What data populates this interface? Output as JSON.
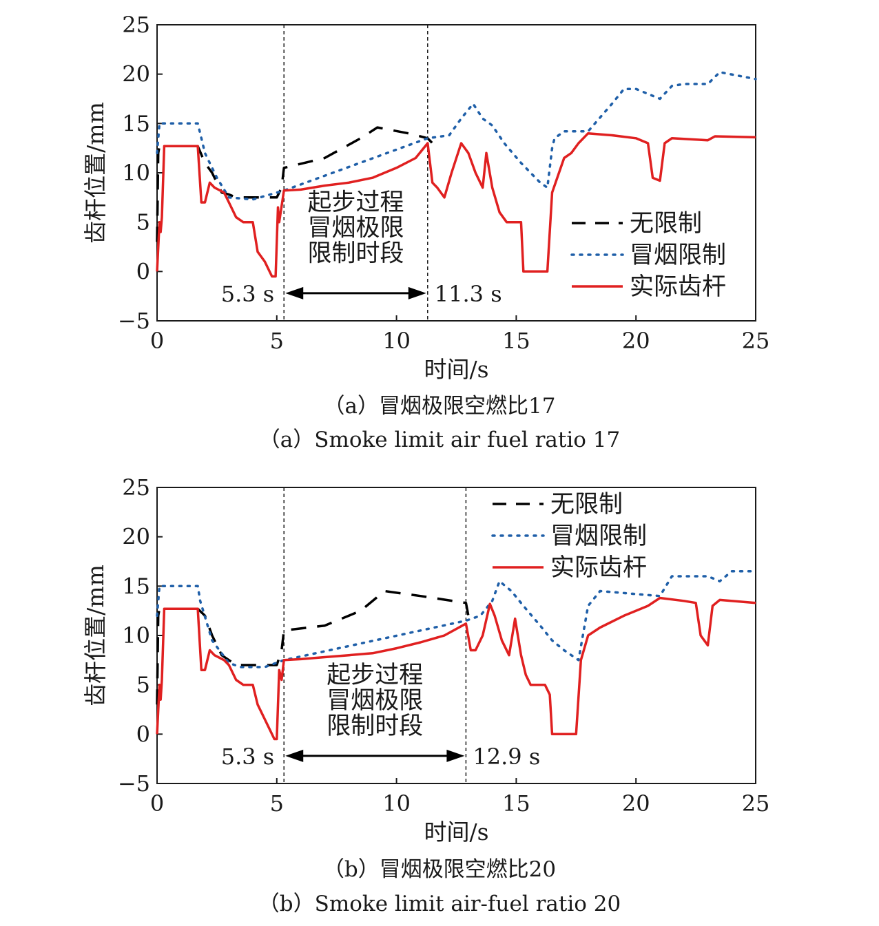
{
  "chart_data": [
    {
      "type": "line",
      "caption_cn": "（a）冒烟极限空燃比17",
      "caption_en": "（a）Smoke limit air fuel ratio 17",
      "xlabel": "时间/s",
      "ylabel": "齿杆位置/mm",
      "xlim": [
        0,
        25
      ],
      "ylim": [
        -5,
        25
      ],
      "xticks": [
        "0",
        "5",
        "10",
        "15",
        "20",
        "25"
      ],
      "yticks": [
        "−5",
        "0",
        "5",
        "10",
        "15",
        "20",
        "25"
      ],
      "grid": false,
      "legend_position": "center-right",
      "vlines": [
        5.3,
        11.3
      ],
      "vline_labels": [
        "5.3 s",
        "11.3 s"
      ],
      "annotation": [
        "起步过程",
        "冒烟极限",
        "限制时段"
      ],
      "series": [
        {
          "name": "无限制",
          "style": "dashed",
          "color": "#000000",
          "points": [
            [
              0,
              3
            ],
            [
              0.05,
              12
            ],
            [
              0.1,
              12.7
            ],
            [
              1.7,
              12.7
            ],
            [
              2.0,
              11
            ],
            [
              2.3,
              10
            ],
            [
              2.7,
              8
            ],
            [
              3.0,
              7.8
            ],
            [
              3.3,
              7.5
            ],
            [
              5.0,
              7.5
            ],
            [
              5.2,
              8.5
            ],
            [
              5.3,
              10.5
            ],
            [
              7,
              11.5
            ],
            [
              8.5,
              13.5
            ],
            [
              9.2,
              14.6
            ],
            [
              10.5,
              14
            ],
            [
              11.3,
              13.5
            ],
            [
              11.5,
              13
            ]
          ]
        },
        {
          "name": "冒烟限制",
          "style": "dotted",
          "color": "#1f5fa8",
          "points": [
            [
              0,
              12
            ],
            [
              0.1,
              15
            ],
            [
              1.7,
              15
            ],
            [
              1.8,
              14
            ],
            [
              2.0,
              12
            ],
            [
              2.5,
              9.5
            ],
            [
              3.0,
              7.5
            ],
            [
              4.0,
              7.3
            ],
            [
              5.3,
              8.2
            ],
            [
              11.3,
              13.5
            ],
            [
              12.2,
              13.8
            ],
            [
              12.7,
              15.5
            ],
            [
              13.2,
              17
            ],
            [
              13.6,
              15.5
            ],
            [
              14.0,
              14.8
            ],
            [
              14.5,
              13
            ],
            [
              15.2,
              11
            ],
            [
              16.0,
              9
            ],
            [
              16.3,
              8.5
            ],
            [
              16.5,
              12.5
            ],
            [
              16.6,
              13.5
            ],
            [
              17.0,
              14.2
            ],
            [
              18.0,
              14.2
            ],
            [
              19.0,
              17
            ],
            [
              19.5,
              18.5
            ],
            [
              20.0,
              18.5
            ],
            [
              21.0,
              17.5
            ],
            [
              21.5,
              18.8
            ],
            [
              22.0,
              19
            ],
            [
              23.0,
              19
            ],
            [
              23.5,
              20.2
            ],
            [
              25.0,
              19.5
            ]
          ]
        },
        {
          "name": "实际齿杆",
          "style": "solid",
          "color": "#e02020",
          "points": [
            [
              0,
              0
            ],
            [
              0.1,
              5
            ],
            [
              0.15,
              4
            ],
            [
              0.2,
              5.5
            ],
            [
              0.3,
              12.7
            ],
            [
              1.7,
              12.7
            ],
            [
              1.85,
              7
            ],
            [
              2.0,
              7
            ],
            [
              2.2,
              9
            ],
            [
              2.4,
              8.5
            ],
            [
              2.8,
              8
            ],
            [
              3.0,
              7
            ],
            [
              3.3,
              5.5
            ],
            [
              3.6,
              5
            ],
            [
              4.0,
              5
            ],
            [
              4.2,
              2
            ],
            [
              4.5,
              1
            ],
            [
              4.8,
              -0.5
            ],
            [
              4.95,
              -0.5
            ],
            [
              5.05,
              6.5
            ],
            [
              5.1,
              5
            ],
            [
              5.3,
              8.2
            ],
            [
              6.0,
              8.3
            ],
            [
              7.0,
              8.7
            ],
            [
              8.0,
              9
            ],
            [
              9.0,
              9.5
            ],
            [
              10.0,
              10.5
            ],
            [
              10.8,
              11.5
            ],
            [
              11.3,
              13
            ],
            [
              11.5,
              9
            ],
            [
              11.7,
              8.5
            ],
            [
              12.0,
              7.5
            ],
            [
              12.3,
              10
            ],
            [
              12.7,
              13
            ],
            [
              13.0,
              12
            ],
            [
              13.3,
              10
            ],
            [
              13.6,
              8.5
            ],
            [
              13.75,
              12
            ],
            [
              14.0,
              8.5
            ],
            [
              14.3,
              6
            ],
            [
              14.6,
              5
            ],
            [
              15.2,
              5
            ],
            [
              15.3,
              0
            ],
            [
              16.3,
              0
            ],
            [
              16.5,
              8
            ],
            [
              17.0,
              11.5
            ],
            [
              17.3,
              12
            ],
            [
              17.6,
              13
            ],
            [
              18.0,
              14
            ],
            [
              19.0,
              13.8
            ],
            [
              20.0,
              13.5
            ],
            [
              20.5,
              13
            ],
            [
              20.7,
              9.5
            ],
            [
              21.0,
              9.2
            ],
            [
              21.2,
              13
            ],
            [
              21.5,
              13.5
            ],
            [
              23.0,
              13.3
            ],
            [
              23.3,
              13.7
            ],
            [
              25.0,
              13.6
            ]
          ]
        }
      ]
    },
    {
      "type": "line",
      "caption_cn": "（b）冒烟极限空燃比20",
      "caption_en": "（b）Smoke limit air-fuel ratio 20",
      "xlabel": "时间/s",
      "ylabel": "齿杆位置/mm",
      "xlim": [
        0,
        25
      ],
      "ylim": [
        -5,
        25
      ],
      "xticks": [
        "0",
        "5",
        "10",
        "15",
        "20",
        "25"
      ],
      "yticks": [
        "−5",
        "0",
        "5",
        "10",
        "15",
        "20",
        "25"
      ],
      "grid": false,
      "legend_position": "top-right",
      "vlines": [
        5.3,
        12.9
      ],
      "vline_labels": [
        "5.3 s",
        "12.9 s"
      ],
      "annotation": [
        "起步过程",
        "冒烟极限",
        "限制时段"
      ],
      "series": [
        {
          "name": "无限制",
          "style": "dashed",
          "color": "#000000",
          "points": [
            [
              0,
              3
            ],
            [
              0.05,
              12
            ],
            [
              0.1,
              12.7
            ],
            [
              1.7,
              12.7
            ],
            [
              2.0,
              12
            ],
            [
              2.3,
              10
            ],
            [
              2.7,
              8
            ],
            [
              3.0,
              7.5
            ],
            [
              3.3,
              7
            ],
            [
              5.0,
              7
            ],
            [
              5.2,
              8.5
            ],
            [
              5.3,
              10.5
            ],
            [
              7,
              11
            ],
            [
              8.5,
              12.5
            ],
            [
              9.5,
              14.5
            ],
            [
              11,
              14
            ],
            [
              12.9,
              13.3
            ],
            [
              13.0,
              12
            ]
          ]
        },
        {
          "name": "冒烟限制",
          "style": "dotted",
          "color": "#1f5fa8",
          "points": [
            [
              0,
              12
            ],
            [
              0.1,
              15
            ],
            [
              1.7,
              15
            ],
            [
              1.8,
              13.5
            ],
            [
              2.3,
              9.5
            ],
            [
              3.0,
              7.2
            ],
            [
              3.5,
              6.8
            ],
            [
              4.5,
              6.8
            ],
            [
              5.3,
              7.5
            ],
            [
              12.9,
              11.5
            ],
            [
              13.5,
              12
            ],
            [
              14.0,
              13.5
            ],
            [
              14.3,
              15.5
            ],
            [
              14.8,
              14.5
            ],
            [
              15.3,
              13
            ],
            [
              16.0,
              11
            ],
            [
              16.5,
              9.5
            ],
            [
              17.0,
              8.5
            ],
            [
              17.6,
              7.5
            ],
            [
              18.0,
              13
            ],
            [
              18.5,
              14.5
            ],
            [
              21.0,
              14
            ],
            [
              21.5,
              16
            ],
            [
              22.0,
              16
            ],
            [
              23.0,
              16
            ],
            [
              23.5,
              15.5
            ],
            [
              24.0,
              16.5
            ],
            [
              25.0,
              16.5
            ]
          ]
        },
        {
          "name": "实际齿杆",
          "style": "solid",
          "color": "#e02020",
          "points": [
            [
              0,
              0
            ],
            [
              0.1,
              5
            ],
            [
              0.15,
              3.5
            ],
            [
              0.2,
              5.5
            ],
            [
              0.3,
              12.7
            ],
            [
              1.7,
              12.7
            ],
            [
              1.85,
              6.5
            ],
            [
              2.0,
              6.5
            ],
            [
              2.2,
              8.5
            ],
            [
              2.4,
              8
            ],
            [
              2.8,
              7.5
            ],
            [
              3.0,
              7
            ],
            [
              3.3,
              5.5
            ],
            [
              3.6,
              5
            ],
            [
              4.0,
              5
            ],
            [
              4.2,
              3
            ],
            [
              4.6,
              1
            ],
            [
              4.9,
              -0.5
            ],
            [
              5.0,
              -0.5
            ],
            [
              5.1,
              6.5
            ],
            [
              5.2,
              5.5
            ],
            [
              5.3,
              7.5
            ],
            [
              6.0,
              7.6
            ],
            [
              7.0,
              7.8
            ],
            [
              8.0,
              8
            ],
            [
              9.0,
              8.2
            ],
            [
              10.0,
              8.7
            ],
            [
              11.0,
              9.3
            ],
            [
              12.0,
              10
            ],
            [
              12.9,
              11.2
            ],
            [
              13.1,
              8.5
            ],
            [
              13.3,
              8.5
            ],
            [
              13.6,
              10
            ],
            [
              13.9,
              13.2
            ],
            [
              14.1,
              12
            ],
            [
              14.4,
              9.5
            ],
            [
              14.7,
              8
            ],
            [
              14.95,
              11.7
            ],
            [
              15.2,
              8
            ],
            [
              15.4,
              6
            ],
            [
              15.6,
              5
            ],
            [
              16.2,
              5
            ],
            [
              16.4,
              4
            ],
            [
              16.5,
              0
            ],
            [
              17.5,
              0
            ],
            [
              17.7,
              7.5
            ],
            [
              18.0,
              10
            ],
            [
              18.5,
              10.8
            ],
            [
              19.5,
              12
            ],
            [
              20.5,
              13
            ],
            [
              21.0,
              13.8
            ],
            [
              22.0,
              13.5
            ],
            [
              22.5,
              13.3
            ],
            [
              22.7,
              10
            ],
            [
              23.0,
              9
            ],
            [
              23.2,
              13
            ],
            [
              23.5,
              13.6
            ],
            [
              25.0,
              13.3
            ]
          ]
        }
      ]
    }
  ]
}
